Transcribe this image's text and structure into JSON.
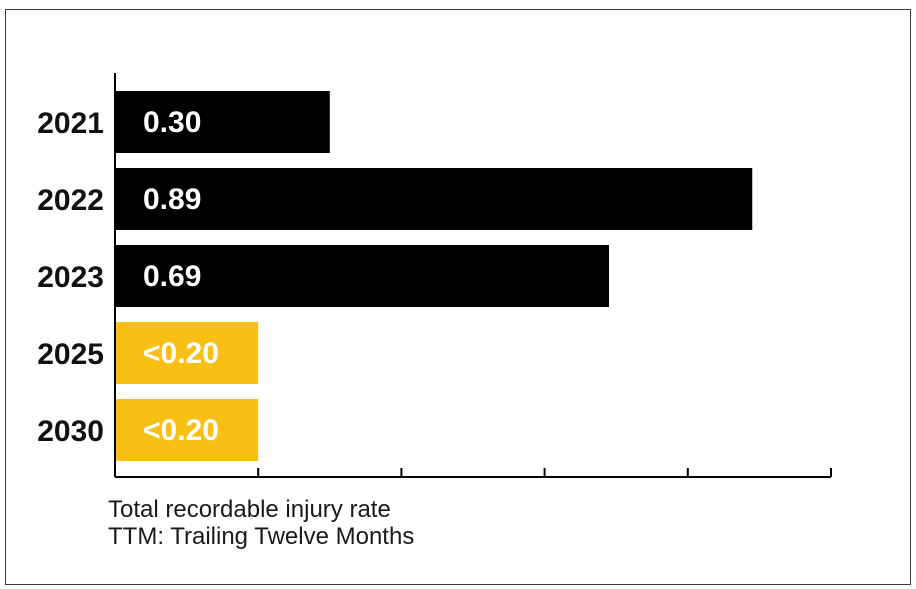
{
  "chart_data": {
    "type": "bar",
    "orientation": "horizontal",
    "categories": [
      "2021",
      "2022",
      "2023",
      "2025",
      "2030"
    ],
    "values": [
      0.3,
      0.89,
      0.69,
      0.2,
      0.2
    ],
    "data_labels": [
      "0.30",
      "0.89",
      "0.69",
      "<0.20",
      "<0.20"
    ],
    "bar_colors": [
      "#000000",
      "#000000",
      "#000000",
      "#F8BF14",
      "#F8BF14"
    ],
    "label_color": "#FFFFFF",
    "xlim": [
      0,
      1.0
    ],
    "x_ticks": [
      0,
      0.2,
      0.4,
      0.6,
      0.8,
      1.0
    ],
    "tick_labels_shown": false,
    "grid": false,
    "legend": "none"
  },
  "caption": {
    "line1": "Total recordable injury rate",
    "line2": "TTM: Trailing Twelve Months"
  },
  "colors": {
    "actual": "#000000",
    "target": "#F8BF14",
    "axis": "#000000",
    "border": "#3a3a3a"
  }
}
